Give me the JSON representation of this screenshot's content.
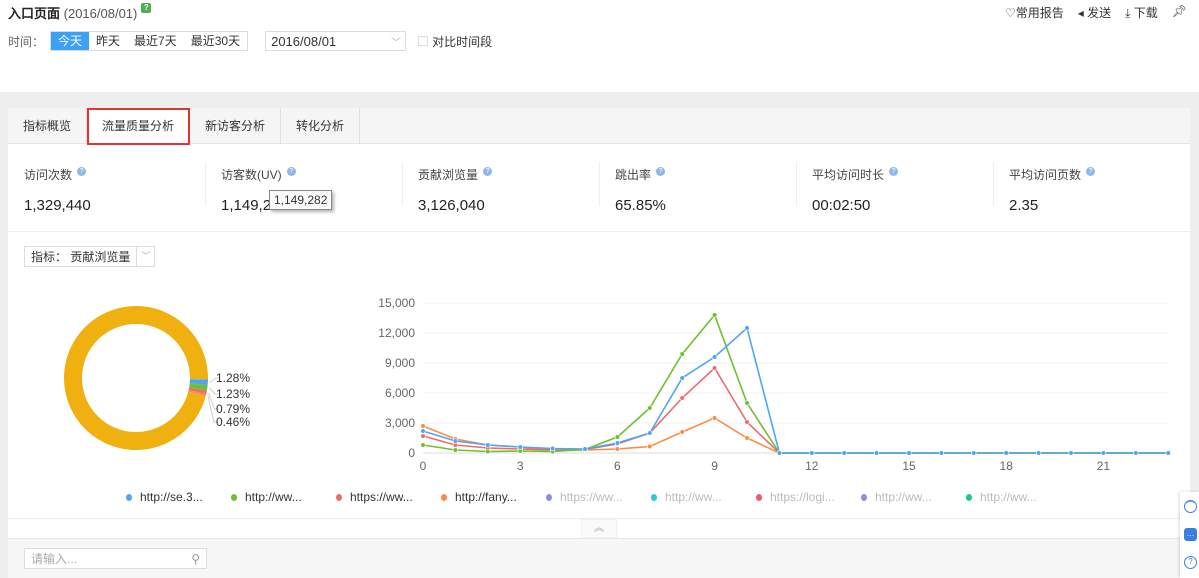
{
  "header": {
    "title": "入口页面",
    "date": "(2016/08/01)",
    "help": "?",
    "links": [
      {
        "icon": "heart-icon",
        "label": "常用报告"
      },
      {
        "icon": "send-icon",
        "label": "发送"
      },
      {
        "icon": "download-icon",
        "label": "下载"
      },
      {
        "icon": "pin-icon",
        "label": ""
      }
    ]
  },
  "timebar": {
    "label": "时间：",
    "options": [
      "今天",
      "昨天",
      "最近7天",
      "最近30天"
    ],
    "selected": "今天",
    "date_value": "2016/08/01",
    "compare_label": "对比时间段",
    "compare_checked": false
  },
  "tabs": [
    {
      "label": "指标概览"
    },
    {
      "label": "流量质量分析",
      "active": true
    },
    {
      "label": "新访客分析"
    },
    {
      "label": "转化分析"
    }
  ],
  "metrics": [
    {
      "label": "访问次数",
      "value": "1,329,440"
    },
    {
      "label": "访客数(UV)",
      "value": "1,149,282"
    },
    {
      "label": "贡献浏览量",
      "value": "3,126,040"
    },
    {
      "label": "跳出率",
      "value": "65.85%"
    },
    {
      "label": "平均访问时长",
      "value": "00:02:50"
    },
    {
      "label": "平均访问页数",
      "value": "2.35"
    }
  ],
  "tooltip": "1,149,282",
  "indicator": {
    "label": "指标：",
    "value": "贡献浏览量"
  },
  "legend": [
    {
      "name": "http://se.3...",
      "color": "#4da6f5",
      "active": true
    },
    {
      "name": "http://ww...",
      "color": "#6cc12c",
      "active": true
    },
    {
      "name": "https://ww...",
      "color": "#ef6b6b",
      "active": true
    },
    {
      "name": "http://fany...",
      "color": "#fb8c46",
      "active": true
    },
    {
      "name": "https://ww...",
      "color": "#8b8bf0",
      "active": false
    },
    {
      "name": "http://ww...",
      "color": "#2ec7d6",
      "active": false
    },
    {
      "name": "https://logi...",
      "color": "#f05a6e",
      "active": false
    },
    {
      "name": "http://ww...",
      "color": "#a57ef0",
      "active": false
    },
    {
      "name": "http://ww...",
      "color": "#1bcb82",
      "active": false
    }
  ],
  "search": {
    "placeholder": "请输入..."
  },
  "chart_data": [
    {
      "type": "pie",
      "donut": true,
      "slices": [
        {
          "value": 96.24,
          "color": "#f0b010"
        },
        {
          "label": "1.28%",
          "value": 1.28,
          "color": "#4da6f5"
        },
        {
          "label": "1.23%",
          "value": 1.23,
          "color": "#6cc12c"
        },
        {
          "label": "0.79%",
          "value": 0.79,
          "color": "#ef6b6b"
        },
        {
          "label": "0.46%",
          "value": 0.46,
          "color": "#fb8c46"
        }
      ]
    },
    {
      "type": "line",
      "x": [
        0,
        1,
        2,
        3,
        4,
        5,
        6,
        7,
        8,
        9,
        10,
        11,
        12,
        13,
        14,
        15,
        16,
        17,
        18,
        19,
        20,
        21,
        22,
        23
      ],
      "xticks": [
        "0",
        "3",
        "6",
        "9",
        "12",
        "15",
        "18",
        "21"
      ],
      "xtick_values": [
        0,
        3,
        6,
        9,
        12,
        15,
        18,
        21
      ],
      "yticks": [
        "0",
        "3,000",
        "6,000",
        "9,000",
        "12,000",
        "15,000"
      ],
      "ylim": [
        0,
        15000
      ],
      "grid": true,
      "series": [
        {
          "name": "http://se.3...",
          "color": "#4da6f5",
          "values": [
            2200,
            1200,
            800,
            600,
            450,
            400,
            1000,
            2000,
            7500,
            9600,
            12500,
            0,
            0,
            0,
            0,
            0,
            0,
            0,
            0,
            0,
            0,
            0,
            0,
            0
          ]
        },
        {
          "name": "http://ww...",
          "color": "#6cc12c",
          "values": [
            800,
            300,
            150,
            200,
            150,
            350,
            1600,
            4500,
            9900,
            13800,
            5000,
            0,
            0,
            0,
            0,
            0,
            0,
            0,
            0,
            0,
            0,
            0,
            0,
            0
          ]
        },
        {
          "name": "https://ww...",
          "color": "#ef6b6b",
          "values": [
            1700,
            800,
            500,
            400,
            300,
            350,
            900,
            2000,
            5500,
            8500,
            3100,
            0,
            0,
            0,
            0,
            0,
            0,
            0,
            0,
            0,
            0,
            0,
            0,
            0
          ]
        },
        {
          "name": "http://fany...",
          "color": "#fb8c46",
          "values": [
            2700,
            1400,
            800,
            600,
            300,
            300,
            400,
            650,
            2100,
            3500,
            1500,
            0,
            0,
            0,
            0,
            0,
            0,
            0,
            0,
            0,
            0,
            0,
            0,
            0
          ]
        }
      ]
    }
  ]
}
